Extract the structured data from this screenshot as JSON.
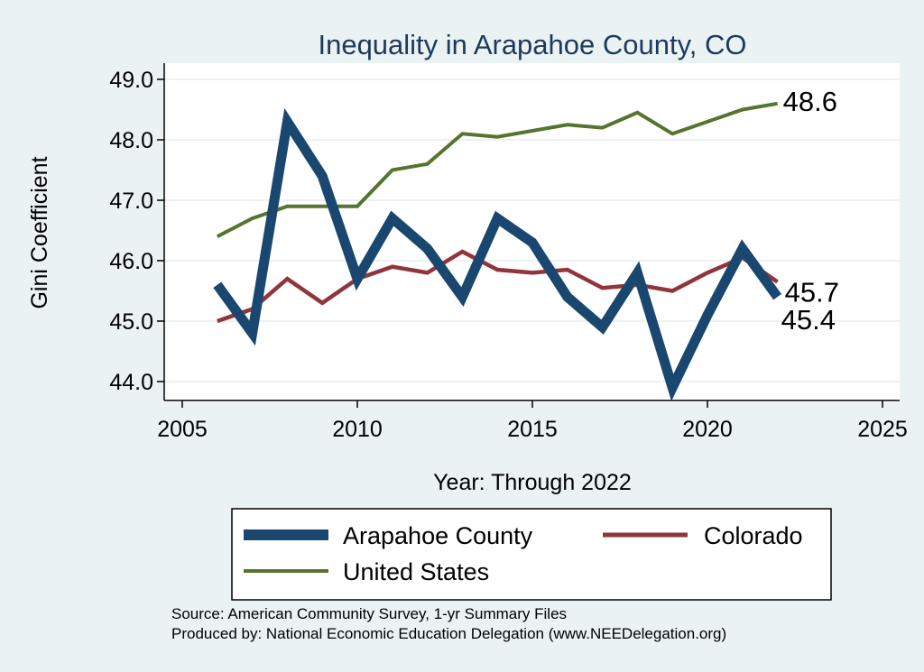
{
  "chart_data": {
    "type": "line",
    "title": "Inequality in Arapahoe County, CO",
    "xlabel": "Year: Through 2022",
    "ylabel": "Gini Coefficient",
    "xlim": [
      2005,
      2025
    ],
    "ylim": [
      43.8,
      49.3
    ],
    "xticks": [
      2005,
      2010,
      2015,
      2020,
      2025
    ],
    "yticks": [
      44.0,
      45.0,
      46.0,
      47.0,
      48.0,
      49.0
    ],
    "ytick_labels": [
      "44.0",
      "45.0",
      "46.0",
      "47.0",
      "48.0",
      "49.0"
    ],
    "grid": true,
    "x": [
      2006,
      2007,
      2008,
      2009,
      2010,
      2011,
      2012,
      2013,
      2014,
      2015,
      2016,
      2017,
      2018,
      2019,
      2020,
      2021,
      2022
    ],
    "series": [
      {
        "name": "Arapahoe County",
        "color": "#1a476f",
        "values": [
          45.6,
          44.8,
          48.3,
          47.4,
          45.7,
          46.7,
          46.2,
          45.4,
          46.7,
          46.3,
          45.4,
          44.9,
          45.8,
          43.9,
          45.1,
          46.2,
          45.4
        ],
        "end_label": "45.4"
      },
      {
        "name": "Colorado",
        "color": "#90353b",
        "values": [
          45.0,
          45.2,
          45.7,
          45.3,
          45.7,
          45.9,
          45.8,
          46.15,
          45.85,
          45.8,
          45.85,
          45.55,
          45.6,
          45.5,
          45.8,
          46.05,
          45.65
        ],
        "end_label": "45.7"
      },
      {
        "name": "United States",
        "color": "#55752f",
        "values": [
          46.4,
          46.7,
          46.9,
          46.9,
          46.9,
          47.5,
          47.6,
          48.1,
          48.05,
          48.15,
          48.25,
          48.2,
          48.45,
          48.1,
          48.3,
          48.5,
          48.6
        ],
        "end_label": "48.6"
      }
    ],
    "source_lines": [
      "Source: American Community Survey, 1-yr Summary Files",
      "Produced by: National Economic Education Delegation (www.NEEDelegation.org)"
    ]
  }
}
